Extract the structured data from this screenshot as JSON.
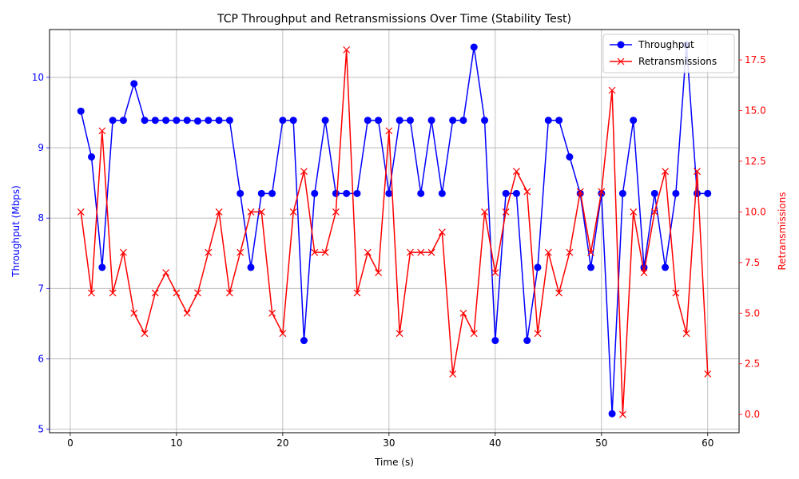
{
  "chart_data": {
    "type": "line",
    "title": "TCP Throughput and Retransmissions Over Time (Stability Test)",
    "xlabel": "Time (s)",
    "ylabel_left": "Throughput (Mbps)",
    "ylabel_right": "Retransmissions",
    "xlim": [
      -1.95,
      62.95
    ],
    "ylim_left": [
      4.95,
      10.68
    ],
    "ylim_right": [
      -0.9,
      19.0
    ],
    "x_ticks": [
      0,
      10,
      20,
      30,
      40,
      50,
      60
    ],
    "y_left_ticks": [
      5,
      6,
      7,
      8,
      9,
      10
    ],
    "y_right_ticks": [
      0.0,
      2.5,
      5.0,
      7.5,
      10.0,
      12.5,
      15.0,
      17.5
    ],
    "grid": true,
    "legend_position": "upper right",
    "colors": {
      "throughput": "#0000ff",
      "retransmissions": "#ff0000",
      "grid": "#b0b0b0"
    },
    "x": [
      1,
      2,
      3,
      4,
      5,
      6,
      7,
      8,
      9,
      10,
      11,
      12,
      13,
      14,
      15,
      16,
      17,
      18,
      19,
      20,
      21,
      22,
      23,
      24,
      25,
      26,
      27,
      28,
      29,
      30,
      31,
      32,
      33,
      34,
      35,
      36,
      37,
      38,
      39,
      40,
      41,
      42,
      43,
      44,
      45,
      46,
      47,
      48,
      49,
      50,
      51,
      52,
      53,
      54,
      55,
      56,
      57,
      58,
      59,
      60
    ],
    "series": [
      {
        "name": "Throughput",
        "axis": "left",
        "marker": "o",
        "values": [
          9.52,
          8.87,
          7.3,
          9.39,
          9.39,
          9.91,
          9.39,
          9.39,
          9.39,
          9.39,
          9.39,
          9.38,
          9.39,
          9.39,
          9.39,
          8.35,
          7.3,
          8.35,
          8.35,
          9.39,
          9.39,
          6.26,
          8.35,
          9.39,
          8.35,
          8.35,
          8.35,
          9.39,
          9.39,
          8.35,
          9.39,
          9.39,
          8.35,
          9.39,
          8.35,
          9.39,
          9.39,
          10.43,
          9.39,
          6.26,
          8.35,
          8.35,
          6.26,
          7.3,
          9.39,
          9.39,
          8.87,
          8.35,
          7.3,
          8.35,
          5.22,
          8.35,
          9.39,
          7.3,
          8.35,
          7.3,
          8.35,
          10.46,
          8.35,
          8.35
        ]
      },
      {
        "name": "Retransmissions",
        "axis": "right",
        "marker": "x",
        "values": [
          10,
          6,
          14,
          6,
          8,
          5,
          4,
          6,
          7,
          6,
          5,
          6,
          8,
          10,
          6,
          8,
          10,
          10,
          5,
          4,
          10,
          12,
          8,
          8,
          10,
          18,
          6,
          8,
          7,
          14,
          4,
          8,
          8,
          8,
          9,
          2,
          5,
          4,
          10,
          7,
          10,
          12,
          11,
          4,
          8,
          6,
          8,
          11,
          8,
          11,
          16,
          0,
          10,
          7,
          10,
          12,
          6,
          4,
          12,
          2
        ]
      }
    ]
  }
}
